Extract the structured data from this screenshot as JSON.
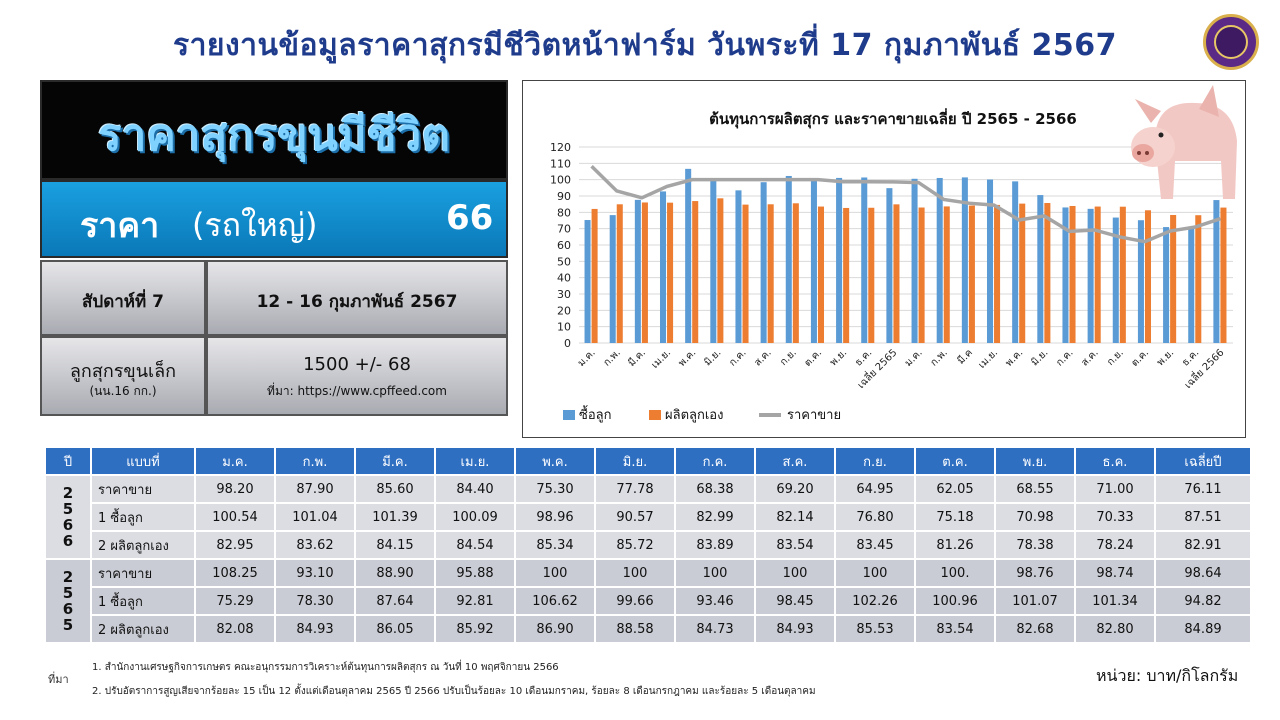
{
  "header": {
    "title": "รายงานข้อมูลราคาสุกรมีชีวิตหน้าฟาร์ม  วันพระที่ 17 กุมภาพันธ์ 2567"
  },
  "summary": {
    "heading": "ราคาสุกรขุนมีชีวิต",
    "price_label": "ราคา",
    "price_sub": "(รถใหญ่)",
    "price_value": "66",
    "week_label": "สัปดาห์ที่ 7",
    "week_dates": "12 - 16 กุมภาพันธ์ 2567",
    "piglet_label": "ลูกสุกรขุนเล็ก",
    "piglet_sub": "(นน.16 กก.)",
    "piglet_value": "1500 +/- 68",
    "piglet_source": "ที่มา: https://www.cpffeed.com"
  },
  "chart_data": {
    "type": "bar",
    "title": "ต้นทุนการผลิตสุกร และราคาขายเฉลี่ย ปี 2565 - 2566",
    "categories": [
      "ม.ค.",
      "ก.พ.",
      "มี.ค.",
      "เม.ย.",
      "พ.ค.",
      "มิ.ย.",
      "ก.ค.",
      "ส.ค.",
      "ก.ย.",
      "ต.ค.",
      "พ.ย.",
      "ธ.ค.",
      "เฉลี่ย 2565",
      "ม.ค.",
      "ก.พ.",
      "มี.ค",
      "เม.ย.",
      "พ.ค.",
      "มิ.ย.",
      "ก.ค.",
      "ส.ค.",
      "ก.ย.",
      "ต.ค.",
      "พ.ย.",
      "ธ.ค.",
      "เฉลี่ย 2566"
    ],
    "series": [
      {
        "name": "ซื้อลูก",
        "kind": "bar",
        "color": "#5b9bd5",
        "values": [
          75.29,
          78.3,
          87.64,
          92.81,
          106.62,
          99.66,
          93.46,
          98.45,
          102.26,
          100.96,
          101.07,
          101.34,
          94.82,
          100.54,
          101.04,
          101.39,
          100.09,
          98.96,
          90.57,
          82.99,
          82.14,
          76.8,
          75.18,
          70.98,
          70.33,
          87.51
        ]
      },
      {
        "name": "ผลิตลูกเอง",
        "kind": "bar",
        "color": "#ed7d31",
        "values": [
          82.08,
          84.93,
          86.05,
          85.92,
          86.9,
          88.58,
          84.73,
          84.93,
          85.53,
          83.54,
          82.68,
          82.8,
          84.89,
          82.95,
          83.62,
          84.15,
          84.54,
          85.34,
          85.72,
          83.89,
          83.54,
          83.45,
          81.26,
          78.38,
          78.24,
          82.91
        ]
      },
      {
        "name": "ราคาขาย",
        "kind": "line",
        "color": "#a5a5a5",
        "values": [
          108.25,
          93.1,
          88.9,
          95.88,
          100,
          100,
          100,
          100,
          100,
          100,
          98.76,
          98.74,
          98.64,
          98.2,
          87.9,
          85.6,
          84.4,
          75.3,
          77.78,
          68.38,
          69.2,
          64.95,
          62.05,
          68.55,
          71.0,
          76.11
        ]
      }
    ],
    "yticks": [
      "120",
      "110",
      "100",
      "90",
      "80",
      "70",
      "60",
      "50",
      "40",
      "30",
      "20",
      "10",
      "0"
    ],
    "ylim": [
      0,
      120
    ],
    "grid": true,
    "legend": "bottom-left"
  },
  "table": {
    "headers": [
      "ปี",
      "แบบที่",
      "ม.ค.",
      "ก.พ.",
      "มี.ค.",
      "เม.ย.",
      "พ.ค.",
      "มิ.ย.",
      "ก.ค.",
      "ส.ค.",
      "ก.ย.",
      "ต.ค.",
      "พ.ย.",
      "ธ.ค.",
      "เฉลี่ยปี"
    ],
    "groups": [
      {
        "year": "2566",
        "rows": [
          {
            "label": "ราคาขาย",
            "values": [
              "98.20",
              "87.90",
              "85.60",
              "84.40",
              "75.30",
              "77.78",
              "68.38",
              "69.20",
              "64.95",
              "62.05",
              "68.55",
              "71.00",
              "76.11"
            ]
          },
          {
            "label": "1 ซื้อลูก",
            "values": [
              "100.54",
              "101.04",
              "101.39",
              "100.09",
              "98.96",
              "90.57",
              "82.99",
              "82.14",
              "76.80",
              "75.18",
              "70.98",
              "70.33",
              "87.51"
            ]
          },
          {
            "label": "2 ผลิตลูกเอง",
            "values": [
              "82.95",
              "83.62",
              "84.15",
              "84.54",
              "85.34",
              "85.72",
              "83.89",
              "83.54",
              "83.45",
              "81.26",
              "78.38",
              "78.24",
              "82.91"
            ]
          }
        ]
      },
      {
        "year": "2565",
        "rows": [
          {
            "label": "ราคาขาย",
            "values": [
              "108.25",
              "93.10",
              "88.90",
              "95.88",
              "100",
              "100",
              "100",
              "100",
              "100",
              "100.",
              "98.76",
              "98.74",
              "98.64"
            ]
          },
          {
            "label": "1 ซื้อลูก",
            "values": [
              "75.29",
              "78.30",
              "87.64",
              "92.81",
              "106.62",
              "99.66",
              "93.46",
              "98.45",
              "102.26",
              "100.96",
              "101.07",
              "101.34",
              "94.82"
            ]
          },
          {
            "label": "2 ผลิตลูกเอง",
            "values": [
              "82.08",
              "84.93",
              "86.05",
              "85.92",
              "86.90",
              "88.58",
              "84.73",
              "84.93",
              "85.53",
              "83.54",
              "82.68",
              "82.80",
              "84.89"
            ]
          }
        ]
      }
    ]
  },
  "footer": {
    "source_label": "ที่มา",
    "note1": "1. สำนักงานเศรษฐกิจการเกษตร คณะอนุกรรมการวิเคราะห์ต้นทุนการผลิตสุกร ณ วันที่ 10 พฤศจิกายน 2566",
    "note2": "2. ปรับอัตราการสูญเสียจากร้อยละ 15 เป็น 12 ตั้งแต่เดือนตุลาคม 2565 ปี 2566 ปรับเป็นร้อยละ 10 เดือนมกราคม, ร้อยละ 8 เดือนกรกฎาคม และร้อยละ 5 เดือนตุลาคม",
    "unit": "หน่วย: บาท/กิโลกรัม"
  }
}
